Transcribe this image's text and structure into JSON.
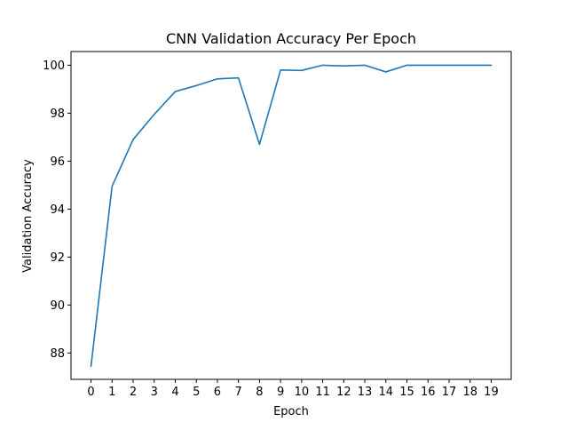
{
  "chart_data": {
    "type": "line",
    "title": "CNN Validation Accuracy Per Epoch",
    "xlabel": "Epoch",
    "ylabel": "Validation Accuracy",
    "x": [
      0,
      1,
      2,
      3,
      4,
      5,
      6,
      7,
      8,
      9,
      10,
      11,
      12,
      13,
      14,
      15,
      16,
      17,
      18,
      19
    ],
    "series": [
      {
        "values": [
          87.45,
          94.95,
          96.9,
          97.95,
          98.9,
          99.15,
          99.43,
          99.47,
          96.7,
          99.8,
          99.78,
          100.0,
          99.97,
          100.0,
          99.72,
          100.0,
          100.0,
          100.0,
          100.0,
          100.0
        ],
        "color": "#1f77b4"
      }
    ],
    "xlim": [
      -0.95,
      19.95
    ],
    "ylim": [
      86.9,
      100.57
    ],
    "xticks": [
      "0",
      "1",
      "2",
      "3",
      "4",
      "5",
      "6",
      "7",
      "8",
      "9",
      "10",
      "11",
      "12",
      "13",
      "14",
      "15",
      "16",
      "17",
      "18",
      "19"
    ],
    "yticks": [
      "88",
      "90",
      "92",
      "94",
      "96",
      "98",
      "100"
    ],
    "grid": false,
    "legend": "none"
  }
}
